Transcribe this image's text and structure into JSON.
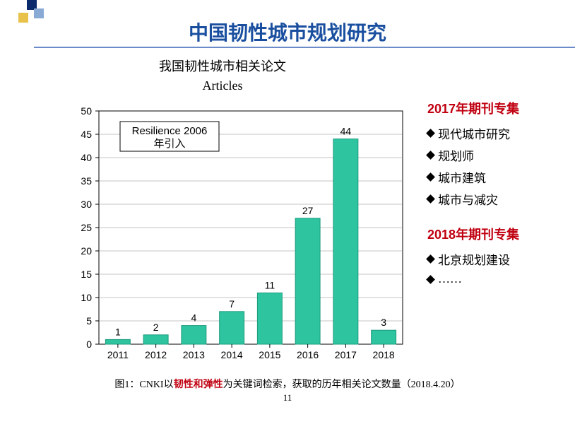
{
  "title": {
    "text": "中国韧性城市规划研究",
    "color": "#1a4fa0",
    "fontsize": 28
  },
  "deco": {
    "block1_color": "#0a2a6b",
    "block2_color": "#8aaad6",
    "block3_color": "#e8c24a",
    "underline_color": "#6a8bc8"
  },
  "chart": {
    "type": "bar",
    "title_cn": "我国韧性城市相关论文",
    "title_en": "Articles",
    "title_font": "SimSun",
    "title_fontsize": 18,
    "title_color": "#000000",
    "categories": [
      "2011",
      "2012",
      "2013",
      "2014",
      "2015",
      "2016",
      "2017",
      "2018"
    ],
    "values": [
      1,
      2,
      4,
      7,
      11,
      27,
      44,
      3
    ],
    "bar_color": "#2ec4a0",
    "bar_border": "#1a9b7d",
    "bar_width": 0.65,
    "ylim": [
      0,
      50
    ],
    "ytick_step": 5,
    "axis_color": "#000000",
    "grid_color": "#888888",
    "label_fontsize": 14,
    "value_label_fontsize": 14,
    "note_text_l1": "Resilience 2006",
    "note_text_l2": "年引入",
    "note_box_border": "#000000",
    "plot_bg": "#ffffff"
  },
  "sidebar": {
    "group1": {
      "heading_year": "2017",
      "heading_rest": "年期刊专集",
      "heading_color": "#c00010",
      "items": [
        "现代城市研究",
        "规划师",
        "城市建筑",
        "城市与减灾"
      ]
    },
    "group2": {
      "heading_year": "2018",
      "heading_rest": "年期刊专集",
      "heading_color": "#c00010",
      "items": [
        "北京规划建设",
        "……"
      ]
    },
    "item_fontsize": 17,
    "heading_fontsize": 18
  },
  "caption": {
    "prefix": "图1：CNKI以",
    "highlight": "韧性和弹性",
    "highlight_color": "#c00010",
    "suffix": "为关键词检索，获取的历年相关论文数量（2018.4.20）",
    "fontsize": 14
  },
  "pagenum": {
    "text": "11",
    "fontsize": 13
  }
}
